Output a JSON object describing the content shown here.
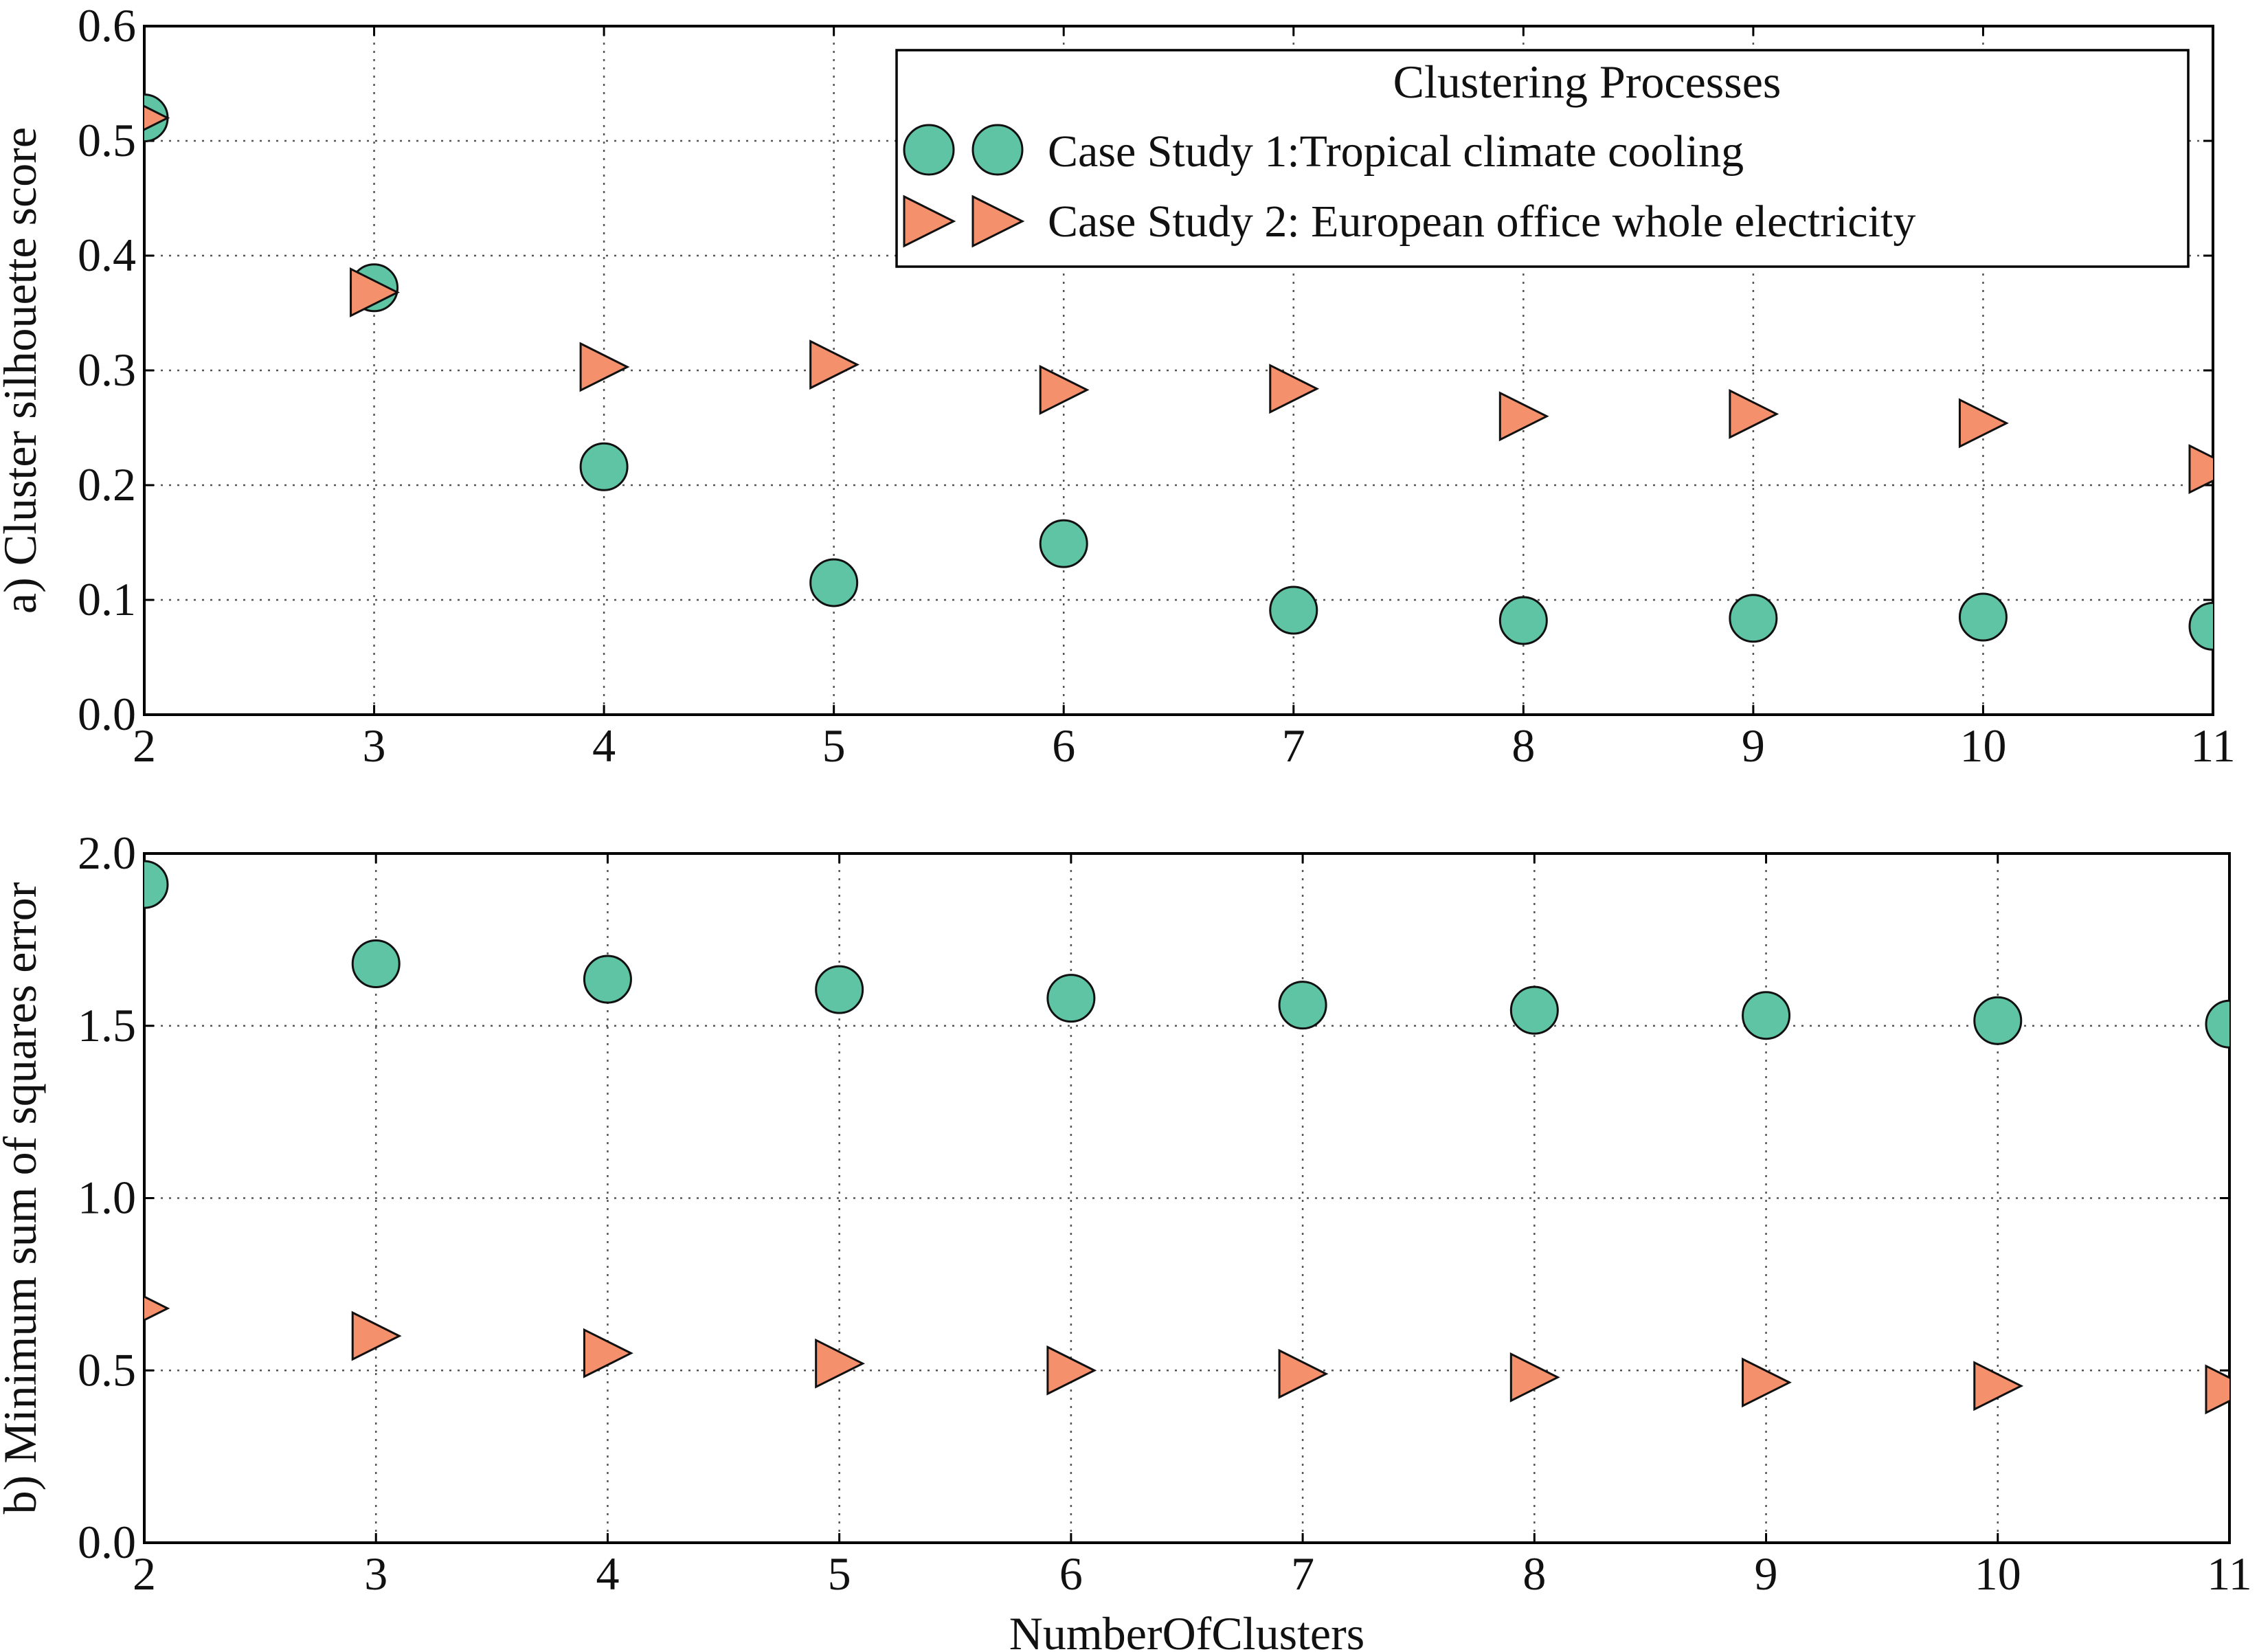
{
  "chart_data": [
    {
      "type": "scatter",
      "ylabel": "a) Cluster silhouette score",
      "xlabel": "",
      "x": [
        2,
        3,
        4,
        5,
        6,
        7,
        8,
        9,
        10,
        11
      ],
      "xlim": [
        2,
        11
      ],
      "ylim": [
        0.0,
        0.6
      ],
      "xticks": [
        "2",
        "3",
        "4",
        "5",
        "6",
        "7",
        "8",
        "9",
        "10",
        "11"
      ],
      "yticks": [
        "0.0",
        "0.1",
        "0.2",
        "0.3",
        "0.4",
        "0.5",
        "0.6"
      ],
      "grid": true,
      "legend": {
        "title": "Clustering Processes",
        "placement": "top-right"
      },
      "series": [
        {
          "name": "Case Study 1:Tropical climate cooling",
          "marker": "circle",
          "color": "#5fc4a3",
          "values": [
            0.52,
            0.372,
            0.216,
            0.115,
            0.149,
            0.091,
            0.082,
            0.084,
            0.085,
            0.077
          ]
        },
        {
          "name": "Case Study 2: European office whole electricity",
          "marker": "triangle-right",
          "color": "#f4906c",
          "values": [
            0.52,
            0.368,
            0.303,
            0.305,
            0.283,
            0.284,
            0.26,
            0.262,
            0.254,
            0.214
          ]
        }
      ]
    },
    {
      "type": "scatter",
      "ylabel": "b) Minimum sum of squares error",
      "xlabel": "NumberOfClusters",
      "x": [
        2,
        3,
        4,
        5,
        6,
        7,
        8,
        9,
        10,
        11
      ],
      "xlim": [
        2,
        11
      ],
      "ylim": [
        0.0,
        2.0
      ],
      "xticks": [
        "2",
        "3",
        "4",
        "5",
        "6",
        "7",
        "8",
        "9",
        "10",
        "11"
      ],
      "yticks": [
        "0.0",
        "0.5",
        "1.0",
        "1.5",
        "2.0"
      ],
      "grid": true,
      "series": [
        {
          "name": "Case Study 1:Tropical climate cooling",
          "marker": "circle",
          "color": "#5fc4a3",
          "values": [
            1.91,
            1.68,
            1.635,
            1.605,
            1.58,
            1.56,
            1.545,
            1.53,
            1.515,
            1.505
          ]
        },
        {
          "name": "Case Study 2: European office whole electricity",
          "marker": "triangle-right",
          "color": "#f4906c",
          "values": [
            0.68,
            0.6,
            0.55,
            0.52,
            0.5,
            0.49,
            0.48,
            0.465,
            0.455,
            0.445
          ]
        }
      ]
    }
  ]
}
